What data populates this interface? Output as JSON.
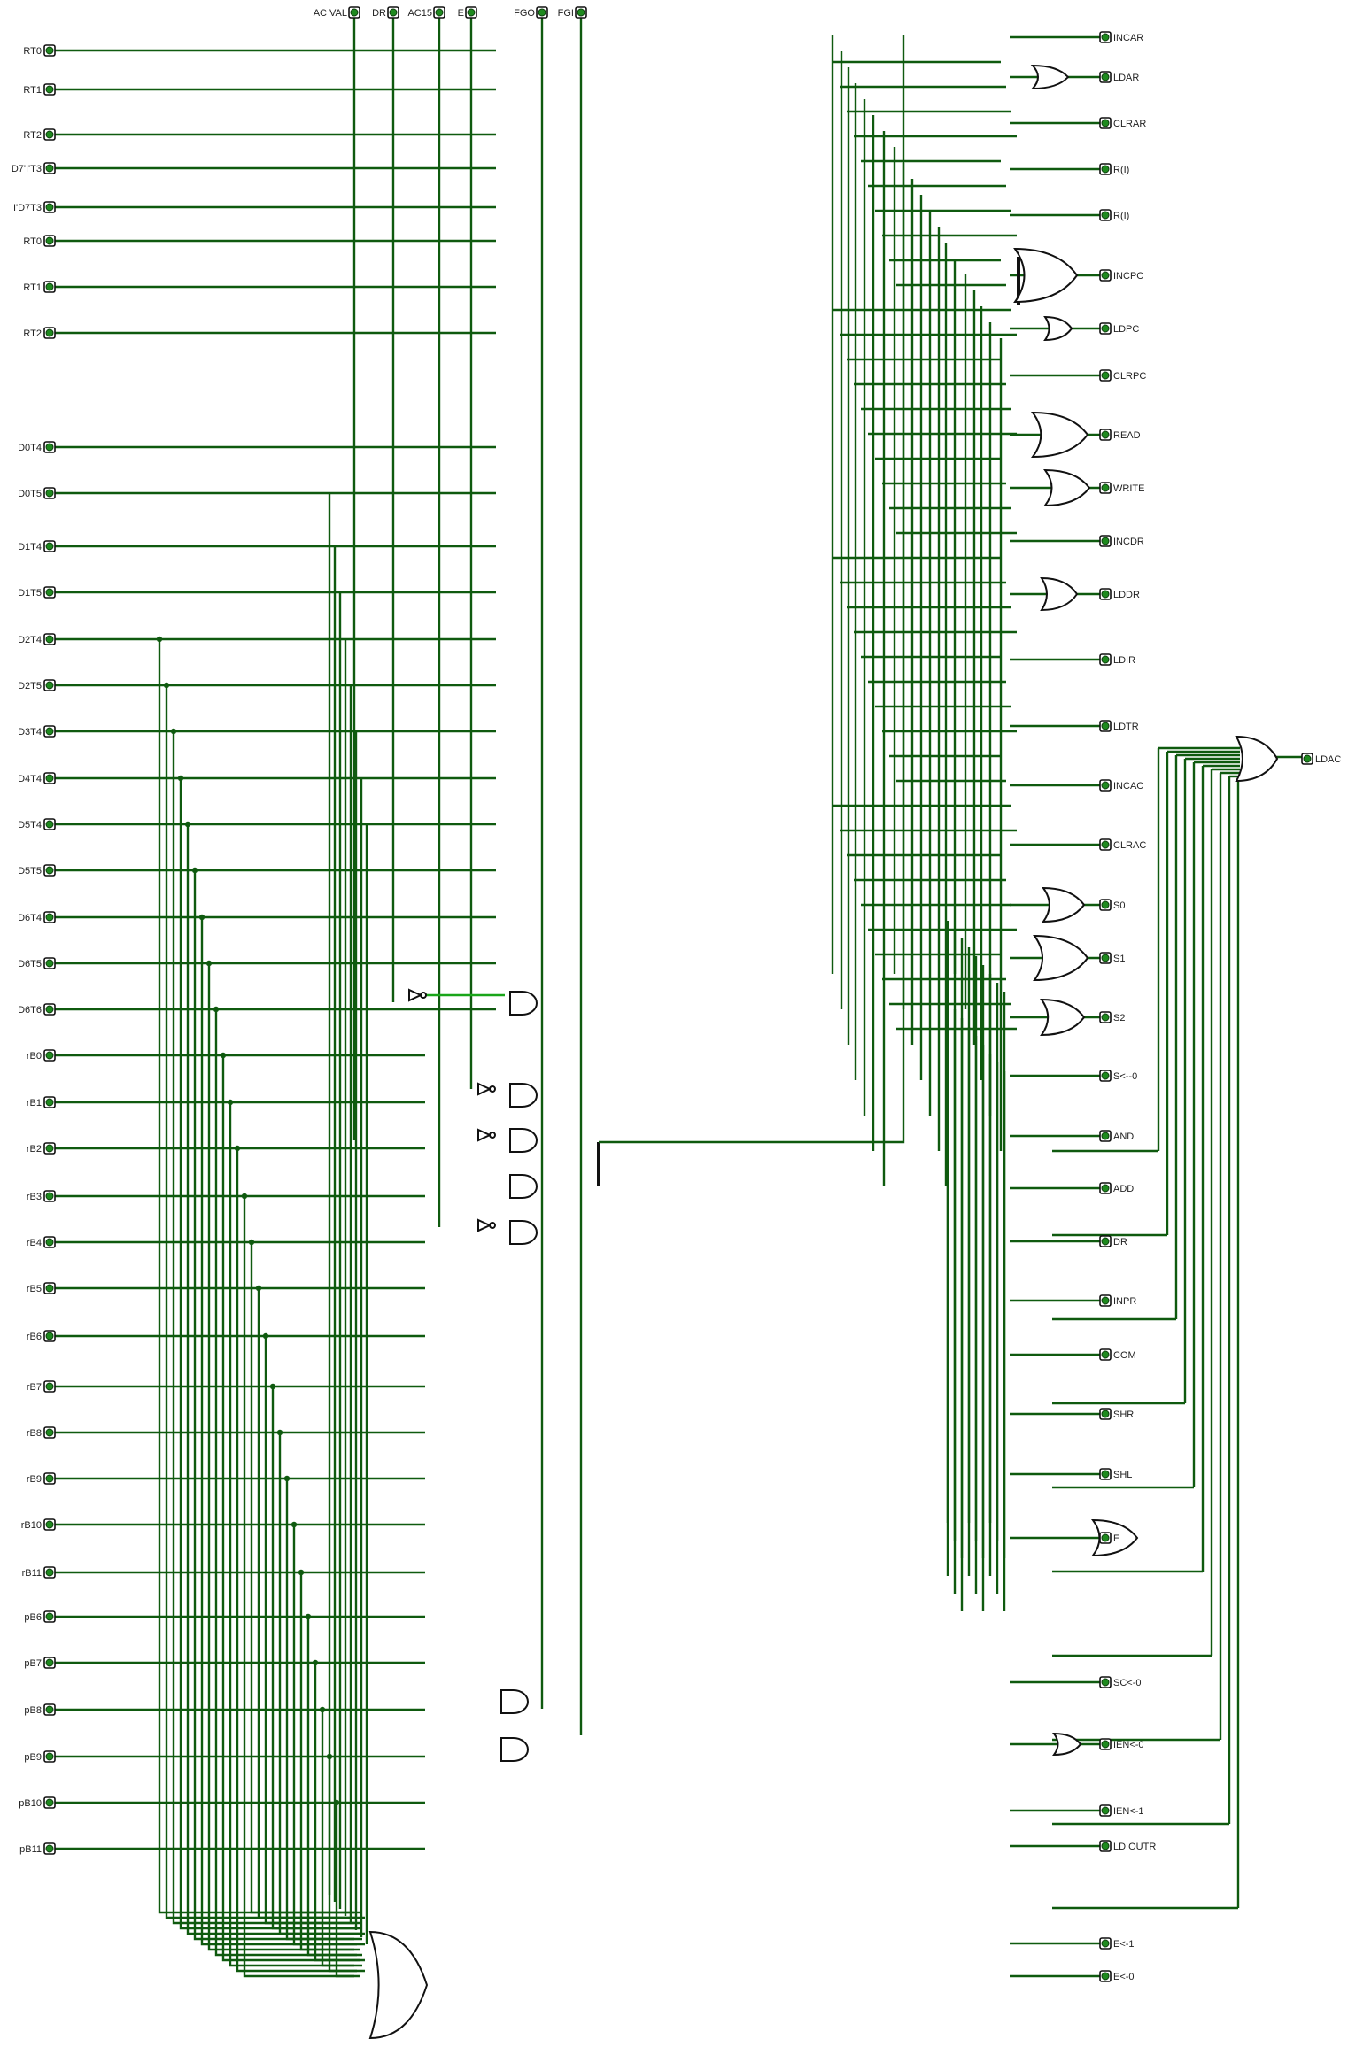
{
  "top_inputs": [
    "AC VAL",
    "DR",
    "AC15",
    "E",
    "FGO",
    "FGI"
  ],
  "left_inputs": [
    "RT0",
    "RT1",
    "RT2",
    "D7'I'T3",
    "I'D7T3",
    "RT0",
    "RT1",
    "RT2",
    "D0T4",
    "D0T5",
    "D1T4",
    "D1T5",
    "D2T4",
    "D2T5",
    "D3T4",
    "D4T4",
    "D5T4",
    "D5T5",
    "D6T4",
    "D6T5",
    "D6T6",
    "rB0",
    "rB1",
    "rB2",
    "rB3",
    "rB4",
    "rB5",
    "rB6",
    "rB7",
    "rB8",
    "rB9",
    "rB10",
    "rB11",
    "pB6",
    "pB7",
    "pB8",
    "pB9",
    "pB10",
    "pB11"
  ],
  "right_outputs": [
    "INCAR",
    "LDAR",
    "CLRAR",
    "R(I)",
    "R(I)",
    "INCPC",
    "LDPC",
    "CLRPC",
    "READ",
    "WRITE",
    "INCDR",
    "LDDR",
    "LDIR",
    "LDTR",
    "INCAC",
    "CLRAC",
    "S0",
    "S1",
    "S2",
    "S<--0",
    "AND",
    "ADD",
    "DR",
    "INPR",
    "COM",
    "SHR",
    "SHL",
    "E",
    "SC<-0",
    "IEN<-0",
    "IEN<-1",
    "LD OUTR",
    "E<-1",
    "E<-0"
  ],
  "far_right_output": "LDAC",
  "colors": {
    "wire": "#0f5a0f",
    "wire_active": "#19a519",
    "pin": "#1e8a1e",
    "gate_stroke": "#111111"
  }
}
